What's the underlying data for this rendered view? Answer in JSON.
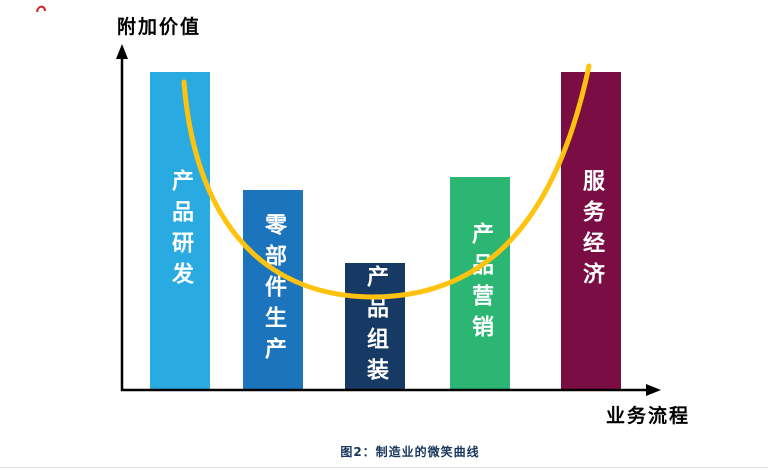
{
  "chart_data": {
    "type": "bar",
    "title": "图2：制造业的微笑曲线",
    "ylabel": "附加价值",
    "xlabel": "业务流程",
    "categories": [
      "产品研发",
      "零部件生产",
      "产品组装",
      "产品营销",
      "服务经济"
    ],
    "values": [
      100,
      63,
      40,
      67,
      100
    ],
    "ylim": [
      0,
      100
    ],
    "grid": false,
    "legend": "none",
    "colors": [
      "#29ABE2",
      "#1C75BC",
      "#173A64",
      "#2BB673",
      "#7B0D45"
    ],
    "bar_label_color": "#FFFFFF",
    "curve": {
      "label": "smile-curve",
      "color": "#FFC20E",
      "shape": "U-shaped curve from top of first bar, dipping at middle bar, rising to top of last bar"
    },
    "axis_color": "#000000"
  },
  "caption": "图2：制造业的微笑曲线"
}
